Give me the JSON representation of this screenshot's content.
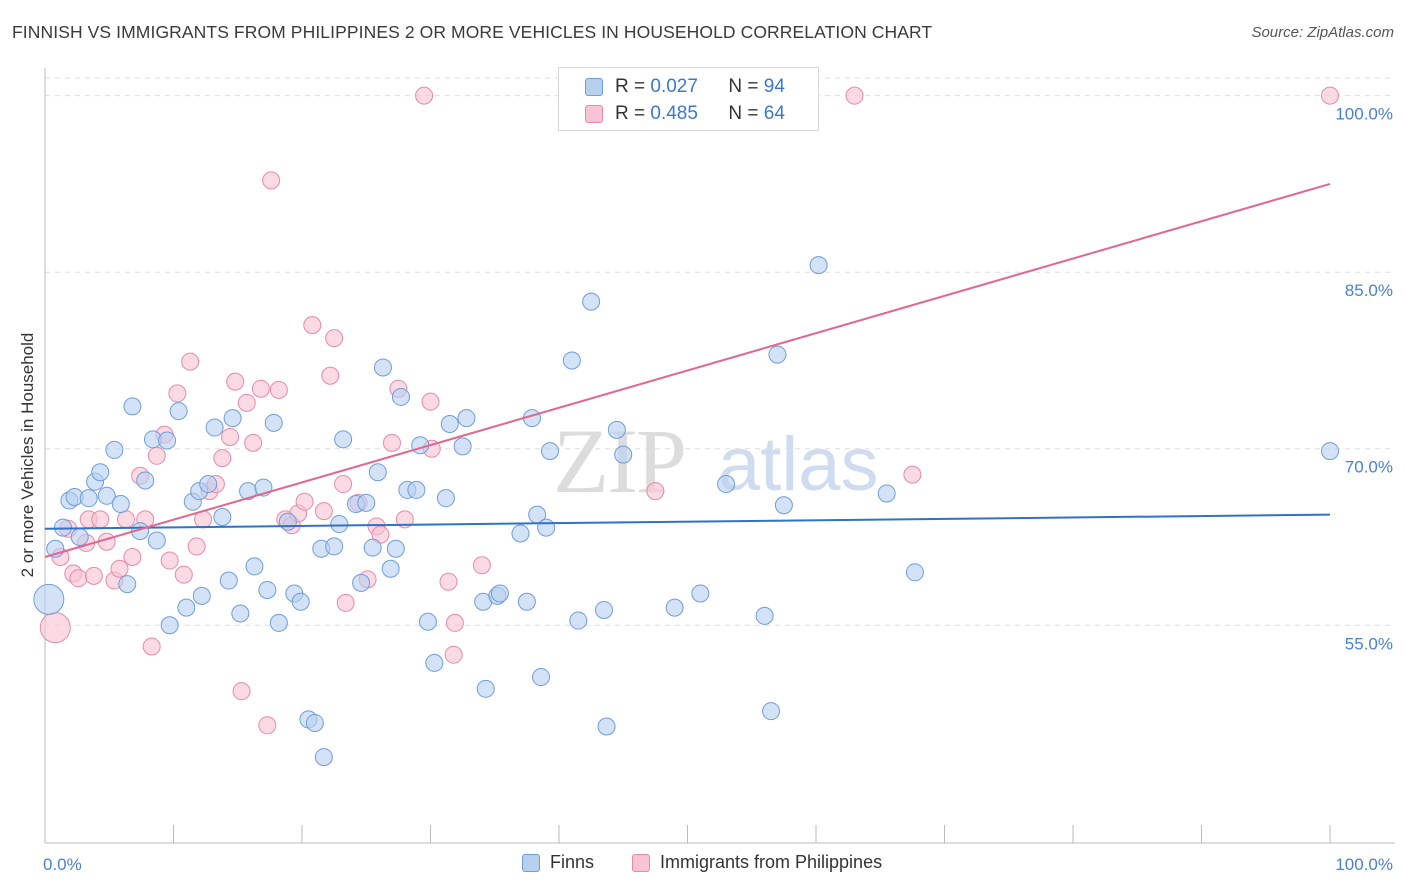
{
  "header": {
    "title": "FINNISH VS IMMIGRANTS FROM PHILIPPINES 2 OR MORE VEHICLES IN HOUSEHOLD CORRELATION CHART",
    "source": "Source: ZipAtlas.com"
  },
  "watermark": {
    "part1": "ZIP",
    "part2": "atlas"
  },
  "legend": {
    "rows": [
      {
        "r_label": "R =",
        "r_value": "0.027",
        "n_label": "N =",
        "n_value": "94"
      },
      {
        "r_label": "R =",
        "r_value": "0.485",
        "n_label": "N =",
        "n_value": "64"
      }
    ]
  },
  "bottom_legend": {
    "series1": "Finns",
    "series2": "Immigrants from Philippines"
  },
  "colors": {
    "finns_fill": "#b8d0f0",
    "finns_stroke": "#6f9ddc",
    "finns_line": "#2f72c8",
    "phil_fill": "#f8c4d4",
    "phil_stroke": "#e88aa8",
    "phil_line": "#e2678f",
    "tick_text": "#4a7fd4",
    "grid": "#dddddd"
  },
  "chart_data": {
    "type": "scatter",
    "title": "FINNISH VS IMMIGRANTS FROM PHILIPPINES 2 OR MORE VEHICLES IN HOUSEHOLD CORRELATION CHART",
    "xlabel": "",
    "ylabel": "2 or more Vehicles in Household",
    "x_tick_labels": [
      "0.0%",
      "100.0%"
    ],
    "y_tick_labels": [
      "100.0%",
      "85.0%",
      "70.0%",
      "55.0%"
    ],
    "y_ticks": [
      100,
      85,
      70,
      55
    ],
    "xlim": [
      0,
      100
    ],
    "ylim": [
      36.5,
      101.5
    ],
    "grid": true,
    "legend_position": "top-center",
    "series": [
      {
        "name": "Finns",
        "r": 0.027,
        "n": 94,
        "trend": {
          "x": [
            0,
            100
          ],
          "y": [
            63.2,
            64.4
          ]
        },
        "points": [
          {
            "x": 0.3,
            "y": 57.2,
            "big": true
          },
          {
            "x": 0.8,
            "y": 61.5
          },
          {
            "x": 1.4,
            "y": 63.3
          },
          {
            "x": 1.9,
            "y": 65.6
          },
          {
            "x": 2.3,
            "y": 65.9
          },
          {
            "x": 2.7,
            "y": 62.5
          },
          {
            "x": 3.4,
            "y": 65.8
          },
          {
            "x": 3.9,
            "y": 67.2
          },
          {
            "x": 4.3,
            "y": 68.0
          },
          {
            "x": 4.8,
            "y": 66.0
          },
          {
            "x": 5.4,
            "y": 69.9
          },
          {
            "x": 5.9,
            "y": 65.3
          },
          {
            "x": 6.4,
            "y": 58.5
          },
          {
            "x": 6.8,
            "y": 73.6
          },
          {
            "x": 7.4,
            "y": 63.0
          },
          {
            "x": 7.8,
            "y": 67.3
          },
          {
            "x": 8.4,
            "y": 70.8
          },
          {
            "x": 8.7,
            "y": 62.2
          },
          {
            "x": 9.5,
            "y": 70.7
          },
          {
            "x": 9.7,
            "y": 55.0
          },
          {
            "x": 10.4,
            "y": 73.2
          },
          {
            "x": 11.0,
            "y": 56.5
          },
          {
            "x": 11.5,
            "y": 65.5
          },
          {
            "x": 12.0,
            "y": 66.4
          },
          {
            "x": 12.2,
            "y": 57.5
          },
          {
            "x": 12.7,
            "y": 67.0
          },
          {
            "x": 13.2,
            "y": 71.8
          },
          {
            "x": 13.8,
            "y": 64.2
          },
          {
            "x": 14.3,
            "y": 58.8
          },
          {
            "x": 14.6,
            "y": 72.6
          },
          {
            "x": 15.2,
            "y": 56.0
          },
          {
            "x": 15.8,
            "y": 66.4
          },
          {
            "x": 16.3,
            "y": 60.0
          },
          {
            "x": 17.0,
            "y": 66.7
          },
          {
            "x": 17.3,
            "y": 58.0
          },
          {
            "x": 17.8,
            "y": 72.2
          },
          {
            "x": 18.2,
            "y": 55.2
          },
          {
            "x": 18.9,
            "y": 63.8
          },
          {
            "x": 19.4,
            "y": 57.7
          },
          {
            "x": 19.9,
            "y": 57.0
          },
          {
            "x": 20.5,
            "y": 47.0
          },
          {
            "x": 21.0,
            "y": 46.7
          },
          {
            "x": 21.5,
            "y": 61.5
          },
          {
            "x": 21.7,
            "y": 43.8
          },
          {
            "x": 22.5,
            "y": 61.7
          },
          {
            "x": 22.9,
            "y": 63.6
          },
          {
            "x": 23.2,
            "y": 70.8
          },
          {
            "x": 24.2,
            "y": 65.3
          },
          {
            "x": 24.6,
            "y": 58.6
          },
          {
            "x": 25.0,
            "y": 65.4
          },
          {
            "x": 25.5,
            "y": 61.6
          },
          {
            "x": 25.9,
            "y": 68.0
          },
          {
            "x": 26.3,
            "y": 76.9
          },
          {
            "x": 26.9,
            "y": 59.8
          },
          {
            "x": 27.3,
            "y": 61.5
          },
          {
            "x": 27.7,
            "y": 74.4
          },
          {
            "x": 28.2,
            "y": 66.5
          },
          {
            "x": 28.9,
            "y": 66.5
          },
          {
            "x": 29.2,
            "y": 70.3
          },
          {
            "x": 29.8,
            "y": 55.3
          },
          {
            "x": 30.3,
            "y": 51.8
          },
          {
            "x": 31.2,
            "y": 65.8
          },
          {
            "x": 31.5,
            "y": 72.1
          },
          {
            "x": 32.5,
            "y": 70.2
          },
          {
            "x": 32.8,
            "y": 72.6
          },
          {
            "x": 34.1,
            "y": 57.0
          },
          {
            "x": 34.3,
            "y": 49.6
          },
          {
            "x": 35.2,
            "y": 57.5
          },
          {
            "x": 35.4,
            "y": 57.7
          },
          {
            "x": 37.0,
            "y": 62.8
          },
          {
            "x": 37.5,
            "y": 57.0
          },
          {
            "x": 37.9,
            "y": 72.6
          },
          {
            "x": 38.3,
            "y": 64.4
          },
          {
            "x": 38.6,
            "y": 50.6
          },
          {
            "x": 39.0,
            "y": 63.3
          },
          {
            "x": 39.3,
            "y": 69.8
          },
          {
            "x": 41.0,
            "y": 77.5
          },
          {
            "x": 41.5,
            "y": 55.4
          },
          {
            "x": 42.5,
            "y": 82.5
          },
          {
            "x": 43.7,
            "y": 46.4
          },
          {
            "x": 43.5,
            "y": 56.3
          },
          {
            "x": 44.5,
            "y": 71.6
          },
          {
            "x": 45.0,
            "y": 69.5
          },
          {
            "x": 49.0,
            "y": 56.5
          },
          {
            "x": 51.0,
            "y": 57.7
          },
          {
            "x": 53.0,
            "y": 67.0
          },
          {
            "x": 56.0,
            "y": 55.8
          },
          {
            "x": 56.5,
            "y": 47.7
          },
          {
            "x": 57.0,
            "y": 78.0
          },
          {
            "x": 57.5,
            "y": 65.2
          },
          {
            "x": 60.2,
            "y": 85.6
          },
          {
            "x": 65.5,
            "y": 66.2
          },
          {
            "x": 67.7,
            "y": 59.5
          },
          {
            "x": 100.0,
            "y": 69.8
          }
        ]
      },
      {
        "name": "Immigrants from Philippines",
        "r": 0.485,
        "n": 64,
        "trend": {
          "x": [
            0,
            100
          ],
          "y": [
            60.8,
            92.5
          ]
        },
        "points": [
          {
            "x": 0.8,
            "y": 54.8,
            "big": true
          },
          {
            "x": 1.2,
            "y": 60.8
          },
          {
            "x": 1.8,
            "y": 63.2
          },
          {
            "x": 2.2,
            "y": 59.4
          },
          {
            "x": 2.6,
            "y": 59.0
          },
          {
            "x": 3.2,
            "y": 62.0
          },
          {
            "x": 3.4,
            "y": 64.0
          },
          {
            "x": 3.8,
            "y": 59.2
          },
          {
            "x": 4.3,
            "y": 64.0
          },
          {
            "x": 4.8,
            "y": 62.1
          },
          {
            "x": 5.4,
            "y": 58.8
          },
          {
            "x": 5.8,
            "y": 59.8
          },
          {
            "x": 6.3,
            "y": 64.0
          },
          {
            "x": 6.8,
            "y": 60.8
          },
          {
            "x": 7.4,
            "y": 67.7
          },
          {
            "x": 7.8,
            "y": 64.0
          },
          {
            "x": 8.3,
            "y": 53.2
          },
          {
            "x": 8.7,
            "y": 69.4
          },
          {
            "x": 9.3,
            "y": 71.2
          },
          {
            "x": 9.7,
            "y": 60.5
          },
          {
            "x": 10.3,
            "y": 74.7
          },
          {
            "x": 10.8,
            "y": 59.3
          },
          {
            "x": 11.3,
            "y": 77.4
          },
          {
            "x": 11.8,
            "y": 61.7
          },
          {
            "x": 12.3,
            "y": 64.0
          },
          {
            "x": 12.8,
            "y": 66.4
          },
          {
            "x": 13.3,
            "y": 67.0
          },
          {
            "x": 13.8,
            "y": 69.2
          },
          {
            "x": 14.4,
            "y": 71.0
          },
          {
            "x": 14.8,
            "y": 75.7
          },
          {
            "x": 15.3,
            "y": 49.4
          },
          {
            "x": 15.7,
            "y": 73.9
          },
          {
            "x": 16.2,
            "y": 70.5
          },
          {
            "x": 16.8,
            "y": 75.1
          },
          {
            "x": 17.3,
            "y": 46.5
          },
          {
            "x": 17.6,
            "y": 92.8
          },
          {
            "x": 18.2,
            "y": 75.0
          },
          {
            "x": 18.7,
            "y": 64.0
          },
          {
            "x": 19.2,
            "y": 63.5
          },
          {
            "x": 19.7,
            "y": 64.5
          },
          {
            "x": 20.2,
            "y": 65.5
          },
          {
            "x": 20.8,
            "y": 80.5
          },
          {
            "x": 21.7,
            "y": 64.7
          },
          {
            "x": 22.2,
            "y": 76.2
          },
          {
            "x": 22.5,
            "y": 79.4
          },
          {
            "x": 23.2,
            "y": 67.0
          },
          {
            "x": 23.4,
            "y": 56.9
          },
          {
            "x": 24.4,
            "y": 65.4
          },
          {
            "x": 25.1,
            "y": 58.9
          },
          {
            "x": 25.8,
            "y": 63.4
          },
          {
            "x": 26.1,
            "y": 62.7
          },
          {
            "x": 27.0,
            "y": 70.5
          },
          {
            "x": 27.5,
            "y": 75.1
          },
          {
            "x": 28.0,
            "y": 64.0
          },
          {
            "x": 29.5,
            "y": 100.0
          },
          {
            "x": 30.0,
            "y": 74.0
          },
          {
            "x": 30.1,
            "y": 70.0
          },
          {
            "x": 31.4,
            "y": 58.7
          },
          {
            "x": 31.8,
            "y": 52.5
          },
          {
            "x": 31.9,
            "y": 55.2
          },
          {
            "x": 34.0,
            "y": 60.1
          },
          {
            "x": 47.5,
            "y": 66.4
          },
          {
            "x": 63.0,
            "y": 100.0
          },
          {
            "x": 67.5,
            "y": 67.8
          },
          {
            "x": 100.0,
            "y": 100.0
          }
        ]
      }
    ]
  }
}
